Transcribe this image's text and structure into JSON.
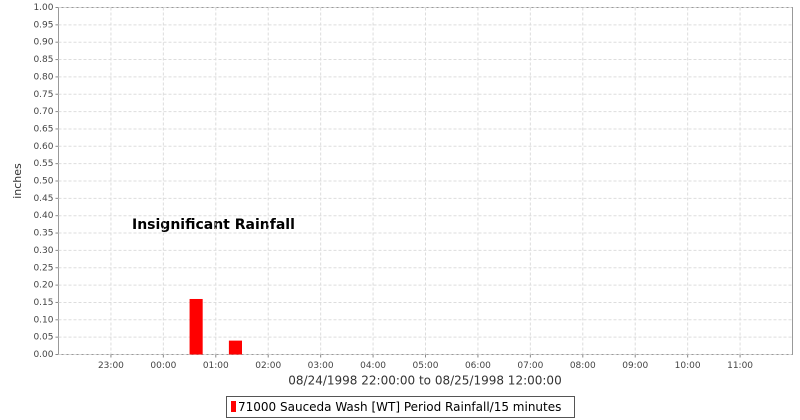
{
  "chart_data": {
    "type": "bar",
    "annotation": "Insignificant Rainfall",
    "xlabel": "08/24/1998 22:00:00 to 08/25/1998 12:00:00",
    "ylabel": "inches",
    "x": [
      "1998-08-25T00:30",
      "1998-08-25T01:15"
    ],
    "series": [
      {
        "name": "71000 Sauceda Wash [WT] Period Rainfall/15 minutes",
        "color": "#ff0000",
        "values": [
          0.16,
          0.04
        ]
      }
    ],
    "xlim": [
      "1998-08-24T22:00",
      "1998-08-25T12:00"
    ],
    "xticks": [
      {
        "value": "1998-08-24T23:00",
        "label": "23:00"
      },
      {
        "value": "1998-08-25T00:00",
        "label": "00:00"
      },
      {
        "value": "1998-08-25T01:00",
        "label": "01:00"
      },
      {
        "value": "1998-08-25T02:00",
        "label": "02:00"
      },
      {
        "value": "1998-08-25T03:00",
        "label": "03:00"
      },
      {
        "value": "1998-08-25T04:00",
        "label": "04:00"
      },
      {
        "value": "1998-08-25T05:00",
        "label": "05:00"
      },
      {
        "value": "1998-08-25T06:00",
        "label": "06:00"
      },
      {
        "value": "1998-08-25T07:00",
        "label": "07:00"
      },
      {
        "value": "1998-08-25T08:00",
        "label": "08:00"
      },
      {
        "value": "1998-08-25T09:00",
        "label": "09:00"
      },
      {
        "value": "1998-08-25T10:00",
        "label": "10:00"
      },
      {
        "value": "1998-08-25T11:00",
        "label": "11:00"
      }
    ],
    "ylim": [
      0,
      1
    ],
    "yticks": [
      {
        "value": 0,
        "label": "0.00"
      },
      {
        "value": 0.05,
        "label": "0.05"
      },
      {
        "value": 0.1,
        "label": "0.10"
      },
      {
        "value": 0.15,
        "label": "0.15"
      },
      {
        "value": 0.2,
        "label": "0.20"
      },
      {
        "value": 0.25,
        "label": "0.25"
      },
      {
        "value": 0.3,
        "label": "0.30"
      },
      {
        "value": 0.35,
        "label": "0.35"
      },
      {
        "value": 0.4,
        "label": "0.40"
      },
      {
        "value": 0.45,
        "label": "0.45"
      },
      {
        "value": 0.5,
        "label": "0.50"
      },
      {
        "value": 0.55,
        "label": "0.55"
      },
      {
        "value": 0.6,
        "label": "0.60"
      },
      {
        "value": 0.65,
        "label": "0.65"
      },
      {
        "value": 0.7,
        "label": "0.70"
      },
      {
        "value": 0.75,
        "label": "0.75"
      },
      {
        "value": 0.8,
        "label": "0.80"
      },
      {
        "value": 0.85,
        "label": "0.85"
      },
      {
        "value": 0.9,
        "label": "0.90"
      },
      {
        "value": 0.95,
        "label": "0.95"
      },
      {
        "value": 1,
        "label": "1.00"
      }
    ],
    "grid": true
  }
}
